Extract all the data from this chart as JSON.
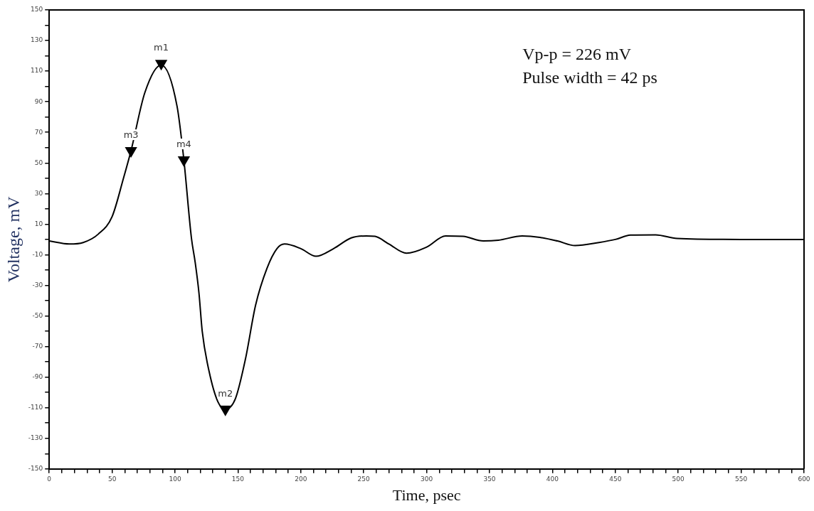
{
  "chart_data": {
    "type": "line",
    "xlabel": "Time, psec",
    "ylabel": "Voltage, mV",
    "x": [
      0,
      16,
      27,
      39,
      50,
      59,
      65,
      76,
      89,
      101.6,
      107,
      113,
      116,
      119,
      121.6,
      127,
      134,
      140,
      148,
      156,
      164,
      173,
      181,
      187,
      200,
      212,
      226,
      240,
      252,
      259,
      270,
      284,
      300,
      315,
      329,
      345,
      357,
      376,
      390,
      404,
      418,
      437,
      450,
      462,
      482,
      499,
      550,
      600
    ],
    "series": [
      {
        "color": "#000000",
        "values": [
          -1,
          -3,
          -2,
          3.5,
          15,
          40,
          58,
          96,
          114,
          87,
          52,
          1,
          -15,
          -35,
          -60,
          -86,
          -106,
          -111,
          -104,
          -78,
          -43,
          -19,
          -6,
          -3,
          -6,
          -11,
          -6,
          1,
          2.3,
          2,
          -3,
          -9,
          -5,
          2.3,
          2,
          -1,
          -0.5,
          2.3,
          1.4,
          -1,
          -4,
          -2,
          0,
          2.8,
          3,
          0.7,
          0,
          0
        ]
      },
      {
        "type": "scatter",
        "marker": "triangle",
        "color": "#000000",
        "x": [
          89,
          65,
          107,
          140
        ],
        "values": [
          115,
          58,
          52,
          -111
        ]
      }
    ],
    "xlim": [
      0,
      600
    ],
    "xticks": [
      0,
      {
        "value": 10,
        "label": null
      },
      {
        "value": 20,
        "label": null
      },
      {
        "value": 30,
        "label": null
      },
      {
        "value": 40,
        "label": null
      },
      50,
      {
        "value": 60,
        "label": null
      },
      {
        "value": 70,
        "label": null
      },
      {
        "value": 80,
        "label": null
      },
      {
        "value": 90,
        "label": null
      },
      100,
      {
        "value": 110,
        "label": null
      },
      {
        "value": 120,
        "label": null
      },
      {
        "value": 130,
        "label": null
      },
      {
        "value": 140,
        "label": null
      },
      150,
      {
        "value": 160,
        "label": null
      },
      {
        "value": 170,
        "label": null
      },
      {
        "value": 180,
        "label": null
      },
      {
        "value": 190,
        "label": null
      },
      200,
      {
        "value": 210,
        "label": null
      },
      {
        "value": 220,
        "label": null
      },
      {
        "value": 230,
        "label": null
      },
      {
        "value": 240,
        "label": null
      },
      250,
      {
        "value": 260,
        "label": null
      },
      {
        "value": 270,
        "label": null
      },
      {
        "value": 280,
        "label": null
      },
      {
        "value": 290,
        "label": null
      },
      300,
      {
        "value": 310,
        "label": null
      },
      {
        "value": 320,
        "label": null
      },
      {
        "value": 330,
        "label": null
      },
      {
        "value": 340,
        "label": null
      },
      350,
      {
        "value": 360,
        "label": null
      },
      {
        "value": 370,
        "label": null
      },
      {
        "value": 380,
        "label": null
      },
      {
        "value": 390,
        "label": null
      },
      400,
      {
        "value": 410,
        "label": null
      },
      {
        "value": 420,
        "label": null
      },
      {
        "value": 430,
        "label": null
      },
      {
        "value": 440,
        "label": null
      },
      450,
      {
        "value": 460,
        "label": null
      },
      {
        "value": 470,
        "label": null
      },
      {
        "value": 480,
        "label": null
      },
      {
        "value": 490,
        "label": null
      },
      500,
      {
        "value": 510,
        "label": null
      },
      {
        "value": 520,
        "label": null
      },
      {
        "value": 530,
        "label": null
      },
      {
        "value": 540,
        "label": null
      },
      550,
      {
        "value": 560,
        "label": null
      },
      {
        "value": 570,
        "label": null
      },
      {
        "value": 580,
        "label": null
      },
      {
        "value": 590,
        "label": null
      },
      600
    ],
    "ylim": [
      -150,
      150
    ],
    "yticks": [
      -150,
      {
        "value": -140,
        "label": null
      },
      -130,
      {
        "value": -120,
        "label": null
      },
      -110,
      {
        "value": -100,
        "label": null
      },
      -90,
      {
        "value": -80,
        "label": null
      },
      -70,
      {
        "value": -60,
        "label": null
      },
      -50,
      {
        "value": -40,
        "label": null
      },
      -30,
      {
        "value": -20,
        "label": null
      },
      -10,
      {
        "value": 0,
        "label": null
      },
      10,
      {
        "value": 20,
        "label": null
      },
      30,
      {
        "value": 40,
        "label": null
      },
      50,
      {
        "value": 60,
        "label": null
      },
      70,
      {
        "value": 80,
        "label": null
      },
      90,
      {
        "value": 100,
        "label": null
      },
      110,
      {
        "value": 120,
        "label": null
      },
      130,
      {
        "value": 140,
        "label": null
      },
      150
    ],
    "annotations": [
      {
        "text": "m1",
        "x": 89,
        "y": 115
      },
      {
        "text": "m3",
        "x": 65,
        "y": 58
      },
      {
        "text": "m4",
        "x": 107,
        "y": 52
      },
      {
        "text": "m2",
        "x": 140,
        "y": -111
      },
      "Vp-p = 226 mV",
      "Pulse width = 42 ps"
    ],
    "grid": false,
    "legend": false,
    "marker": "none",
    "line_style": "solid"
  }
}
